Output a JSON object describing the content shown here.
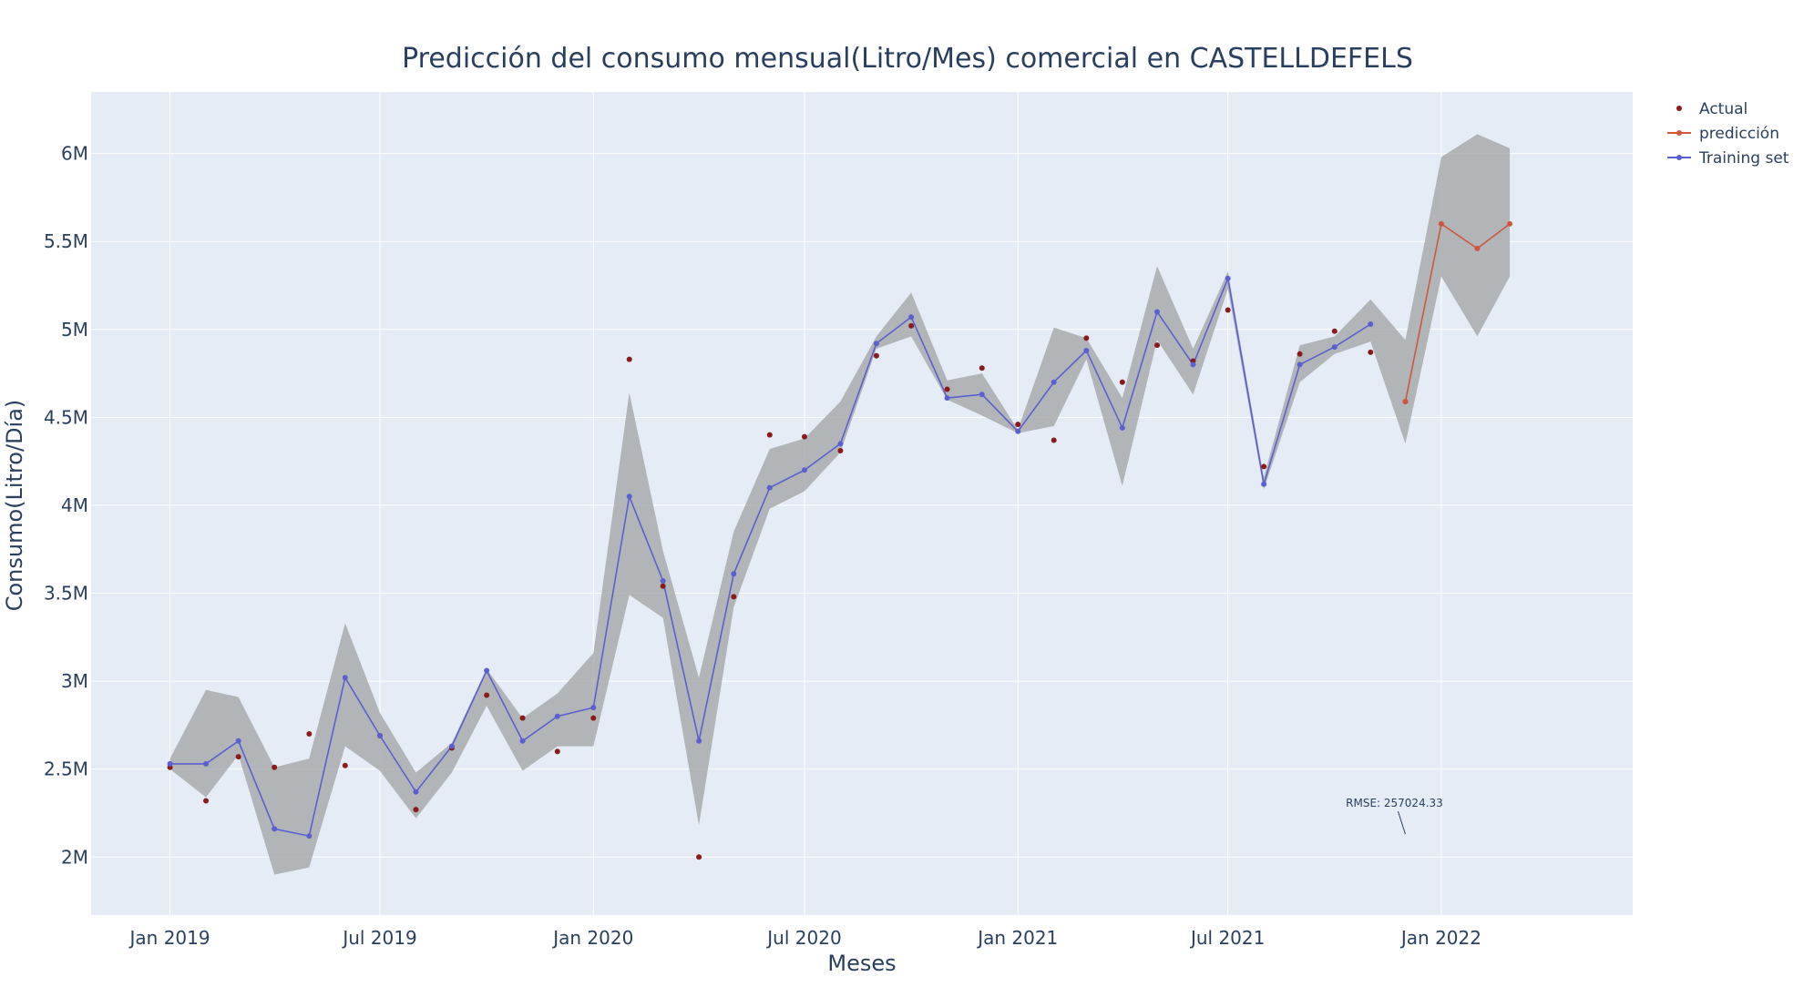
{
  "chart_data": {
    "type": "line",
    "title": "Predicción del consumo mensual(Litro/Mes) comercial en CASTELLDEFELS",
    "xlabel": "Meses",
    "ylabel": "Consumo(Litro/Día)",
    "x_ticks": [
      "Jan 2019",
      "Jul 2019",
      "Jan 2020",
      "Jul 2020",
      "Jan 2021",
      "Jul 2021",
      "Jan 2022"
    ],
    "x_range": [
      "2018-10-25",
      "2022-06-15"
    ],
    "ylim": [
      1670000,
      6350000
    ],
    "y_ticks": [
      {
        "value": 2000000,
        "label": "2M"
      },
      {
        "value": 2500000,
        "label": "2.5M"
      },
      {
        "value": 3000000,
        "label": "3M"
      },
      {
        "value": 3500000,
        "label": "3.5M"
      },
      {
        "value": 4000000,
        "label": "4M"
      },
      {
        "value": 4500000,
        "label": "4.5M"
      },
      {
        "value": 5000000,
        "label": "5M"
      },
      {
        "value": 5500000,
        "label": "5.5M"
      },
      {
        "value": 6000000,
        "label": "6M"
      }
    ],
    "grid": true,
    "legend_position": "top-right",
    "series": [
      {
        "name": "Actual",
        "mode": "markers",
        "color": "#8b1a1a",
        "x": [
          "2019-01-01",
          "2019-02-01",
          "2019-03-01",
          "2019-04-01",
          "2019-05-01",
          "2019-06-01",
          "2019-07-01",
          "2019-08-01",
          "2019-09-01",
          "2019-10-01",
          "2019-11-01",
          "2019-12-01",
          "2020-01-01",
          "2020-02-01",
          "2020-03-01",
          "2020-04-01",
          "2020-05-01",
          "2020-06-01",
          "2020-07-01",
          "2020-08-01",
          "2020-09-01",
          "2020-10-01",
          "2020-11-01",
          "2020-12-01",
          "2021-01-01",
          "2021-02-01",
          "2021-03-01",
          "2021-04-01",
          "2021-05-01",
          "2021-06-01",
          "2021-07-01",
          "2021-08-01",
          "2021-09-01",
          "2021-10-01",
          "2021-11-01",
          "2021-12-01"
        ],
        "y": [
          2510000,
          2320000,
          2570000,
          2510000,
          2700000,
          2520000,
          2690000,
          2270000,
          2620000,
          2920000,
          2790000,
          2600000,
          2790000,
          4830000,
          3540000,
          2000000,
          3480000,
          4400000,
          4390000,
          4310000,
          4850000,
          5020000,
          4660000,
          4780000,
          4460000,
          4370000,
          4950000,
          4700000,
          4910000,
          4820000,
          5110000,
          4220000,
          4860000,
          4990000,
          4870000,
          4590000
        ]
      },
      {
        "name": "Training set",
        "mode": "lines+markers",
        "color": "#5b5fd0",
        "x": [
          "2019-01-01",
          "2019-02-01",
          "2019-03-01",
          "2019-04-01",
          "2019-05-01",
          "2019-06-01",
          "2019-07-01",
          "2019-08-01",
          "2019-09-01",
          "2019-10-01",
          "2019-11-01",
          "2019-12-01",
          "2020-01-01",
          "2020-02-01",
          "2020-03-01",
          "2020-04-01",
          "2020-05-01",
          "2020-06-01",
          "2020-07-01",
          "2020-08-01",
          "2020-09-01",
          "2020-10-01",
          "2020-11-01",
          "2020-12-01",
          "2021-01-01",
          "2021-02-01",
          "2021-03-01",
          "2021-04-01",
          "2021-05-01",
          "2021-06-01",
          "2021-07-01",
          "2021-08-01",
          "2021-09-01",
          "2021-10-01",
          "2021-11-01"
        ],
        "y": [
          2530000,
          2530000,
          2660000,
          2160000,
          2120000,
          3020000,
          2690000,
          2370000,
          2630000,
          3060000,
          2660000,
          2800000,
          2850000,
          4050000,
          3570000,
          2660000,
          3610000,
          4100000,
          4200000,
          4350000,
          4920000,
          5070000,
          4610000,
          4630000,
          4420000,
          4700000,
          4880000,
          4440000,
          5100000,
          4800000,
          5290000,
          4120000,
          4800000,
          4900000,
          5030000
        ]
      },
      {
        "name": "predicción",
        "mode": "lines+markers",
        "color": "#d0563f",
        "x": [
          "2021-12-01",
          "2022-01-01",
          "2022-02-01",
          "2022-03-01"
        ],
        "y": [
          4590000,
          5600000,
          5460000,
          5600000
        ]
      }
    ],
    "confidence_band": {
      "color": "#a9abad",
      "x": [
        "2019-01-01",
        "2019-02-01",
        "2019-03-01",
        "2019-04-01",
        "2019-05-01",
        "2019-06-01",
        "2019-07-01",
        "2019-08-01",
        "2019-09-01",
        "2019-10-01",
        "2019-11-01",
        "2019-12-01",
        "2020-01-01",
        "2020-02-01",
        "2020-03-01",
        "2020-04-01",
        "2020-05-01",
        "2020-06-01",
        "2020-07-01",
        "2020-08-01",
        "2020-09-01",
        "2020-10-01",
        "2020-11-01",
        "2020-12-01",
        "2021-01-01",
        "2021-02-01",
        "2021-03-01",
        "2021-04-01",
        "2021-05-01",
        "2021-06-01",
        "2021-07-01",
        "2021-08-01",
        "2021-09-01",
        "2021-10-01",
        "2021-11-01",
        "2021-12-01",
        "2022-01-01",
        "2022-02-01",
        "2022-03-01"
      ],
      "lower": [
        2500000,
        2340000,
        2580000,
        1900000,
        1940000,
        2630000,
        2490000,
        2220000,
        2480000,
        2860000,
        2490000,
        2630000,
        2630000,
        3490000,
        3360000,
        2180000,
        3420000,
        3980000,
        4080000,
        4300000,
        4890000,
        4960000,
        4600000,
        4510000,
        4410000,
        4450000,
        4830000,
        4110000,
        4940000,
        4630000,
        5230000,
        4090000,
        4700000,
        4860000,
        4930000,
        4350000,
        5300000,
        4960000,
        5300000
      ],
      "upper": [
        2560000,
        2950000,
        2910000,
        2510000,
        2560000,
        3330000,
        2820000,
        2480000,
        2650000,
        3070000,
        2790000,
        2930000,
        3160000,
        4640000,
        3740000,
        3020000,
        3850000,
        4320000,
        4380000,
        4590000,
        4960000,
        5210000,
        4710000,
        4750000,
        4430000,
        5010000,
        4950000,
        4610000,
        5360000,
        4890000,
        5330000,
        4160000,
        4910000,
        4960000,
        5170000,
        4940000,
        5980000,
        6110000,
        6030000
      ]
    },
    "annotation": {
      "text": "RMSE: 257024.33",
      "x": "2021-12-01",
      "y": 2130000
    }
  }
}
